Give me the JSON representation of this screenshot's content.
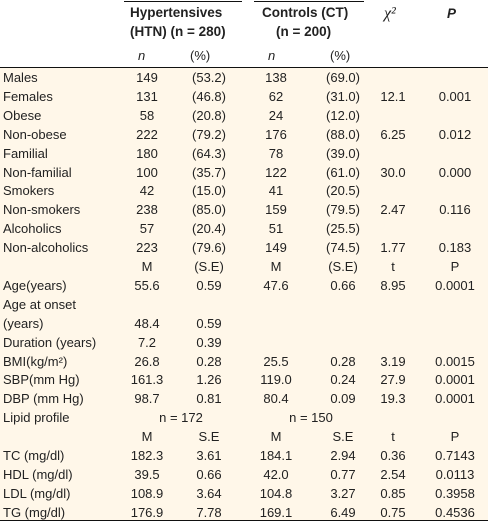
{
  "header": {
    "htn_line1": "Hypertensives",
    "htn_line2": "(HTN) (n = 280)",
    "ct_line1": "Controls (CT)",
    "ct_line2": "(n = 200)",
    "chi": "χ²",
    "p": "P",
    "n": "n",
    "pct": "(%)"
  },
  "rows": [
    {
      "label": "Males",
      "a": "149",
      "b": "(53.2)",
      "c": "138",
      "d": "(69.0)",
      "e": "",
      "f": ""
    },
    {
      "label": "Females",
      "a": "131",
      "b": "(46.8)",
      "c": "62",
      "d": "(31.0)",
      "e": "12.1",
      "f": "0.001"
    },
    {
      "label": "Obese",
      "a": "58",
      "b": "(20.8)",
      "c": "24",
      "d": "(12.0)",
      "e": "",
      "f": ""
    },
    {
      "label": "Non-obese",
      "a": "222",
      "b": "(79.2)",
      "c": "176",
      "d": "(88.0)",
      "e": "6.25",
      "f": "0.012"
    },
    {
      "label": "Familial",
      "a": "180",
      "b": "(64.3)",
      "c": "78",
      "d": "(39.0)",
      "e": "",
      "f": ""
    },
    {
      "label": "Non-familial",
      "a": "100",
      "b": "(35.7)",
      "c": "122",
      "d": "(61.0)",
      "e": "30.0",
      "f": "0.000"
    },
    {
      "label": "Smokers",
      "a": "42",
      "b": "(15.0)",
      "c": "41",
      "d": "(20.5)",
      "e": "",
      "f": ""
    },
    {
      "label": "Non-smokers",
      "a": "238",
      "b": "(85.0)",
      "c": "159",
      "d": "(79.5)",
      "e": "2.47",
      "f": "0.116"
    },
    {
      "label": "Alcoholics",
      "a": "57",
      "b": "(20.4)",
      "c": "51",
      "d": "(25.5)",
      "e": "",
      "f": ""
    },
    {
      "label": "Non-alcoholics",
      "a": "223",
      "b": "(79.6)",
      "c": "149",
      "d": "(74.5)",
      "e": "1.77",
      "f": "0.183"
    },
    {
      "label": "",
      "a": "M",
      "b": "(S.E)",
      "c": "M",
      "d": "(S.E)",
      "e": "t",
      "f": "P"
    },
    {
      "label": "Age(years)",
      "a": "55.6",
      "b": "0.59",
      "c": "47.6",
      "d": "0.66",
      "e": "8.95",
      "f": "0.0001"
    },
    {
      "label": "Age at onset",
      "a": "",
      "b": "",
      "c": "",
      "d": "",
      "e": "",
      "f": ""
    },
    {
      "label": "(years)",
      "a": "48.4",
      "b": "0.59",
      "c": "",
      "d": "",
      "e": "",
      "f": ""
    },
    {
      "label": "Duration (years)",
      "a": "7.2",
      "b": "0.39",
      "c": "",
      "d": "",
      "e": "",
      "f": ""
    },
    {
      "label": "BMI(kg/m²)",
      "a": "26.8",
      "b": "0.28",
      "c": "25.5",
      "d": "0.28",
      "e": "3.19",
      "f": "0.0015"
    },
    {
      "label": "SBP(mm Hg)",
      "a": "161.3",
      "b": "1.26",
      "c": "119.0",
      "d": "0.24",
      "e": "27.9",
      "f": "0.0001"
    },
    {
      "label": "DBP (mm Hg)",
      "a": "98.7",
      "b": "0.81",
      "c": "80.4",
      "d": "0.09",
      "e": "19.3",
      "f": "0.0001"
    },
    {
      "label": "Lipid profile",
      "ab": "n = 172",
      "cd": "n = 150"
    },
    {
      "label": "",
      "a": "M",
      "b": "S.E",
      "c": "M",
      "d": "S.E",
      "e": "t",
      "f": "P"
    },
    {
      "label": "TC (mg/dl)",
      "a": "182.3",
      "b": "3.61",
      "c": "184.1",
      "d": "2.94",
      "e": "0.36",
      "f": "0.7143"
    },
    {
      "label": "HDL (mg/dl)",
      "a": "39.5",
      "b": "0.66",
      "c": "42.0",
      "d": "0.77",
      "e": "2.54",
      "f": "0.0113"
    },
    {
      "label": "LDL (mg/dl)",
      "a": "108.9",
      "b": "3.64",
      "c": "104.8",
      "d": "3.27",
      "e": "0.85",
      "f": "0.3958"
    },
    {
      "label": "TG (mg/dl)",
      "a": "176.9",
      "b": "7.78",
      "c": "169.1",
      "d": "6.49",
      "e": "0.75",
      "f": "0.4536"
    }
  ]
}
